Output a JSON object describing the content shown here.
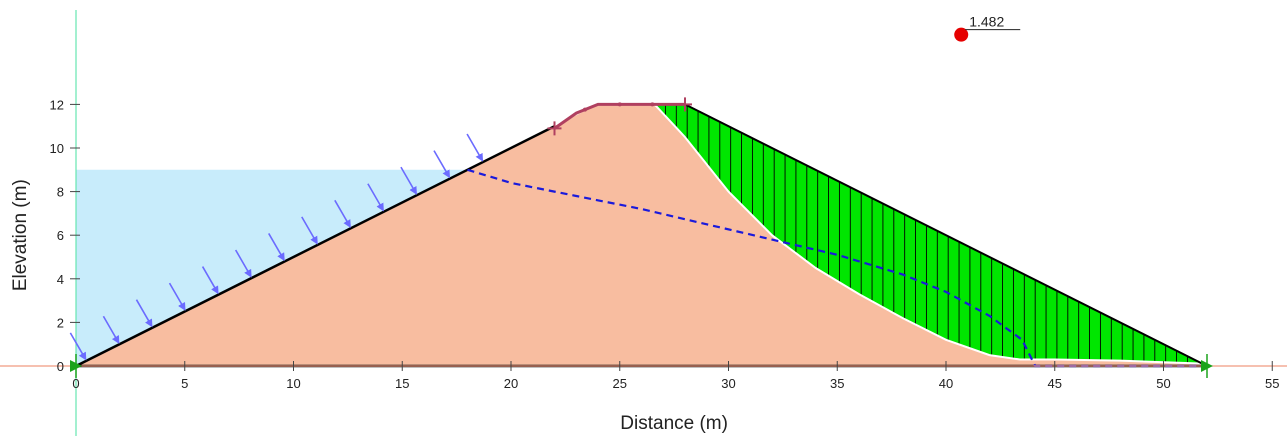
{
  "chart_data": {
    "type": "line",
    "title": "",
    "xlabel": "Distance (m)",
    "ylabel": "Elevation (m)",
    "xlim": [
      0,
      55
    ],
    "ylim": [
      0,
      12
    ],
    "x_ticks": [
      0,
      5,
      10,
      15,
      20,
      25,
      30,
      35,
      40,
      45,
      50,
      55
    ],
    "y_ticks": [
      0,
      2,
      4,
      6,
      8,
      10,
      12
    ],
    "grid": false,
    "factor_of_safety": {
      "label": "1.482",
      "x": 40.7,
      "y": 15.2
    },
    "dam_profile": {
      "x": [
        0,
        22,
        24,
        28,
        52,
        0
      ],
      "y": [
        0,
        11,
        12,
        12,
        0,
        0
      ]
    },
    "reservoir": {
      "water_level": 9,
      "x_start": 0,
      "x_end": 18
    },
    "phreatic_line": {
      "x": [
        18,
        20,
        23,
        26,
        29,
        32,
        35,
        38,
        40,
        42,
        43.5,
        43.9,
        44.1,
        52
      ],
      "y": [
        9,
        8.4,
        7.8,
        7.2,
        6.5,
        5.8,
        5.1,
        4.2,
        3.4,
        2.3,
        1.2,
        0.4,
        0,
        0
      ]
    },
    "slip_surface": {
      "x": [
        26.6,
        28,
        30,
        32,
        34,
        36,
        38,
        40,
        42,
        43.4,
        45,
        48,
        52
      ],
      "y": [
        12,
        10.5,
        8.0,
        6.0,
        4.5,
        3.3,
        2.2,
        1.2,
        0.5,
        0.3,
        0.3,
        0.25,
        0.1
      ]
    },
    "crest_line": {
      "x": [
        22,
        23,
        24,
        25,
        26.5,
        28
      ],
      "y": [
        10.9,
        11.6,
        12,
        12,
        12,
        12
      ]
    },
    "colors": {
      "soil": "#f8bda0",
      "slice_fill": "#00e600",
      "water": "#c8ecfb",
      "phreatic": "#1a1adb",
      "pressure_arrow": "#6b6bff",
      "crest": "#b04060",
      "marker": "#e60000",
      "axis_x": "#f19a80",
      "axis_y": "#66e6b0"
    }
  }
}
